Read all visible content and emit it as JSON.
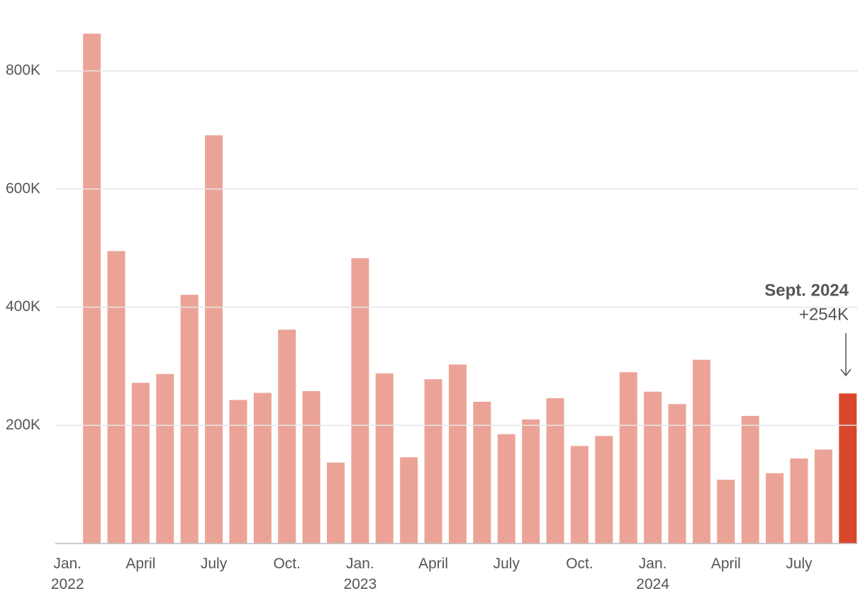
{
  "chart_data": {
    "type": "bar",
    "categories": [
      "Jan.\n2022",
      null,
      null,
      "April",
      null,
      null,
      "July",
      null,
      null,
      "Oct.",
      null,
      null,
      "Jan.\n2023",
      null,
      null,
      "April",
      null,
      null,
      "July",
      null,
      null,
      "Oct.",
      null,
      null,
      "Jan.\n2024",
      null,
      null,
      "April",
      null,
      null,
      "July",
      null,
      null
    ],
    "values": [
      null,
      863000,
      495000,
      272000,
      287000,
      421000,
      691000,
      243000,
      255000,
      362000,
      258000,
      137000,
      483000,
      288000,
      146000,
      278000,
      303000,
      240000,
      185000,
      210000,
      246000,
      165000,
      182000,
      290000,
      257000,
      236000,
      311000,
      108000,
      216000,
      119000,
      144000,
      159000,
      254000
    ],
    "color": "#eca397",
    "highlight_color": "#d9472b",
    "ylim": [
      0,
      872000
    ],
    "yticks": [
      {
        "value": 200000,
        "label": "200K"
      },
      {
        "value": 400000,
        "label": "400K"
      },
      {
        "value": 600000,
        "label": "600K"
      },
      {
        "value": 800000,
        "label": "800K"
      }
    ],
    "grid": true,
    "annotation": {
      "title": "Sept. 2024",
      "label": "+254K"
    }
  }
}
